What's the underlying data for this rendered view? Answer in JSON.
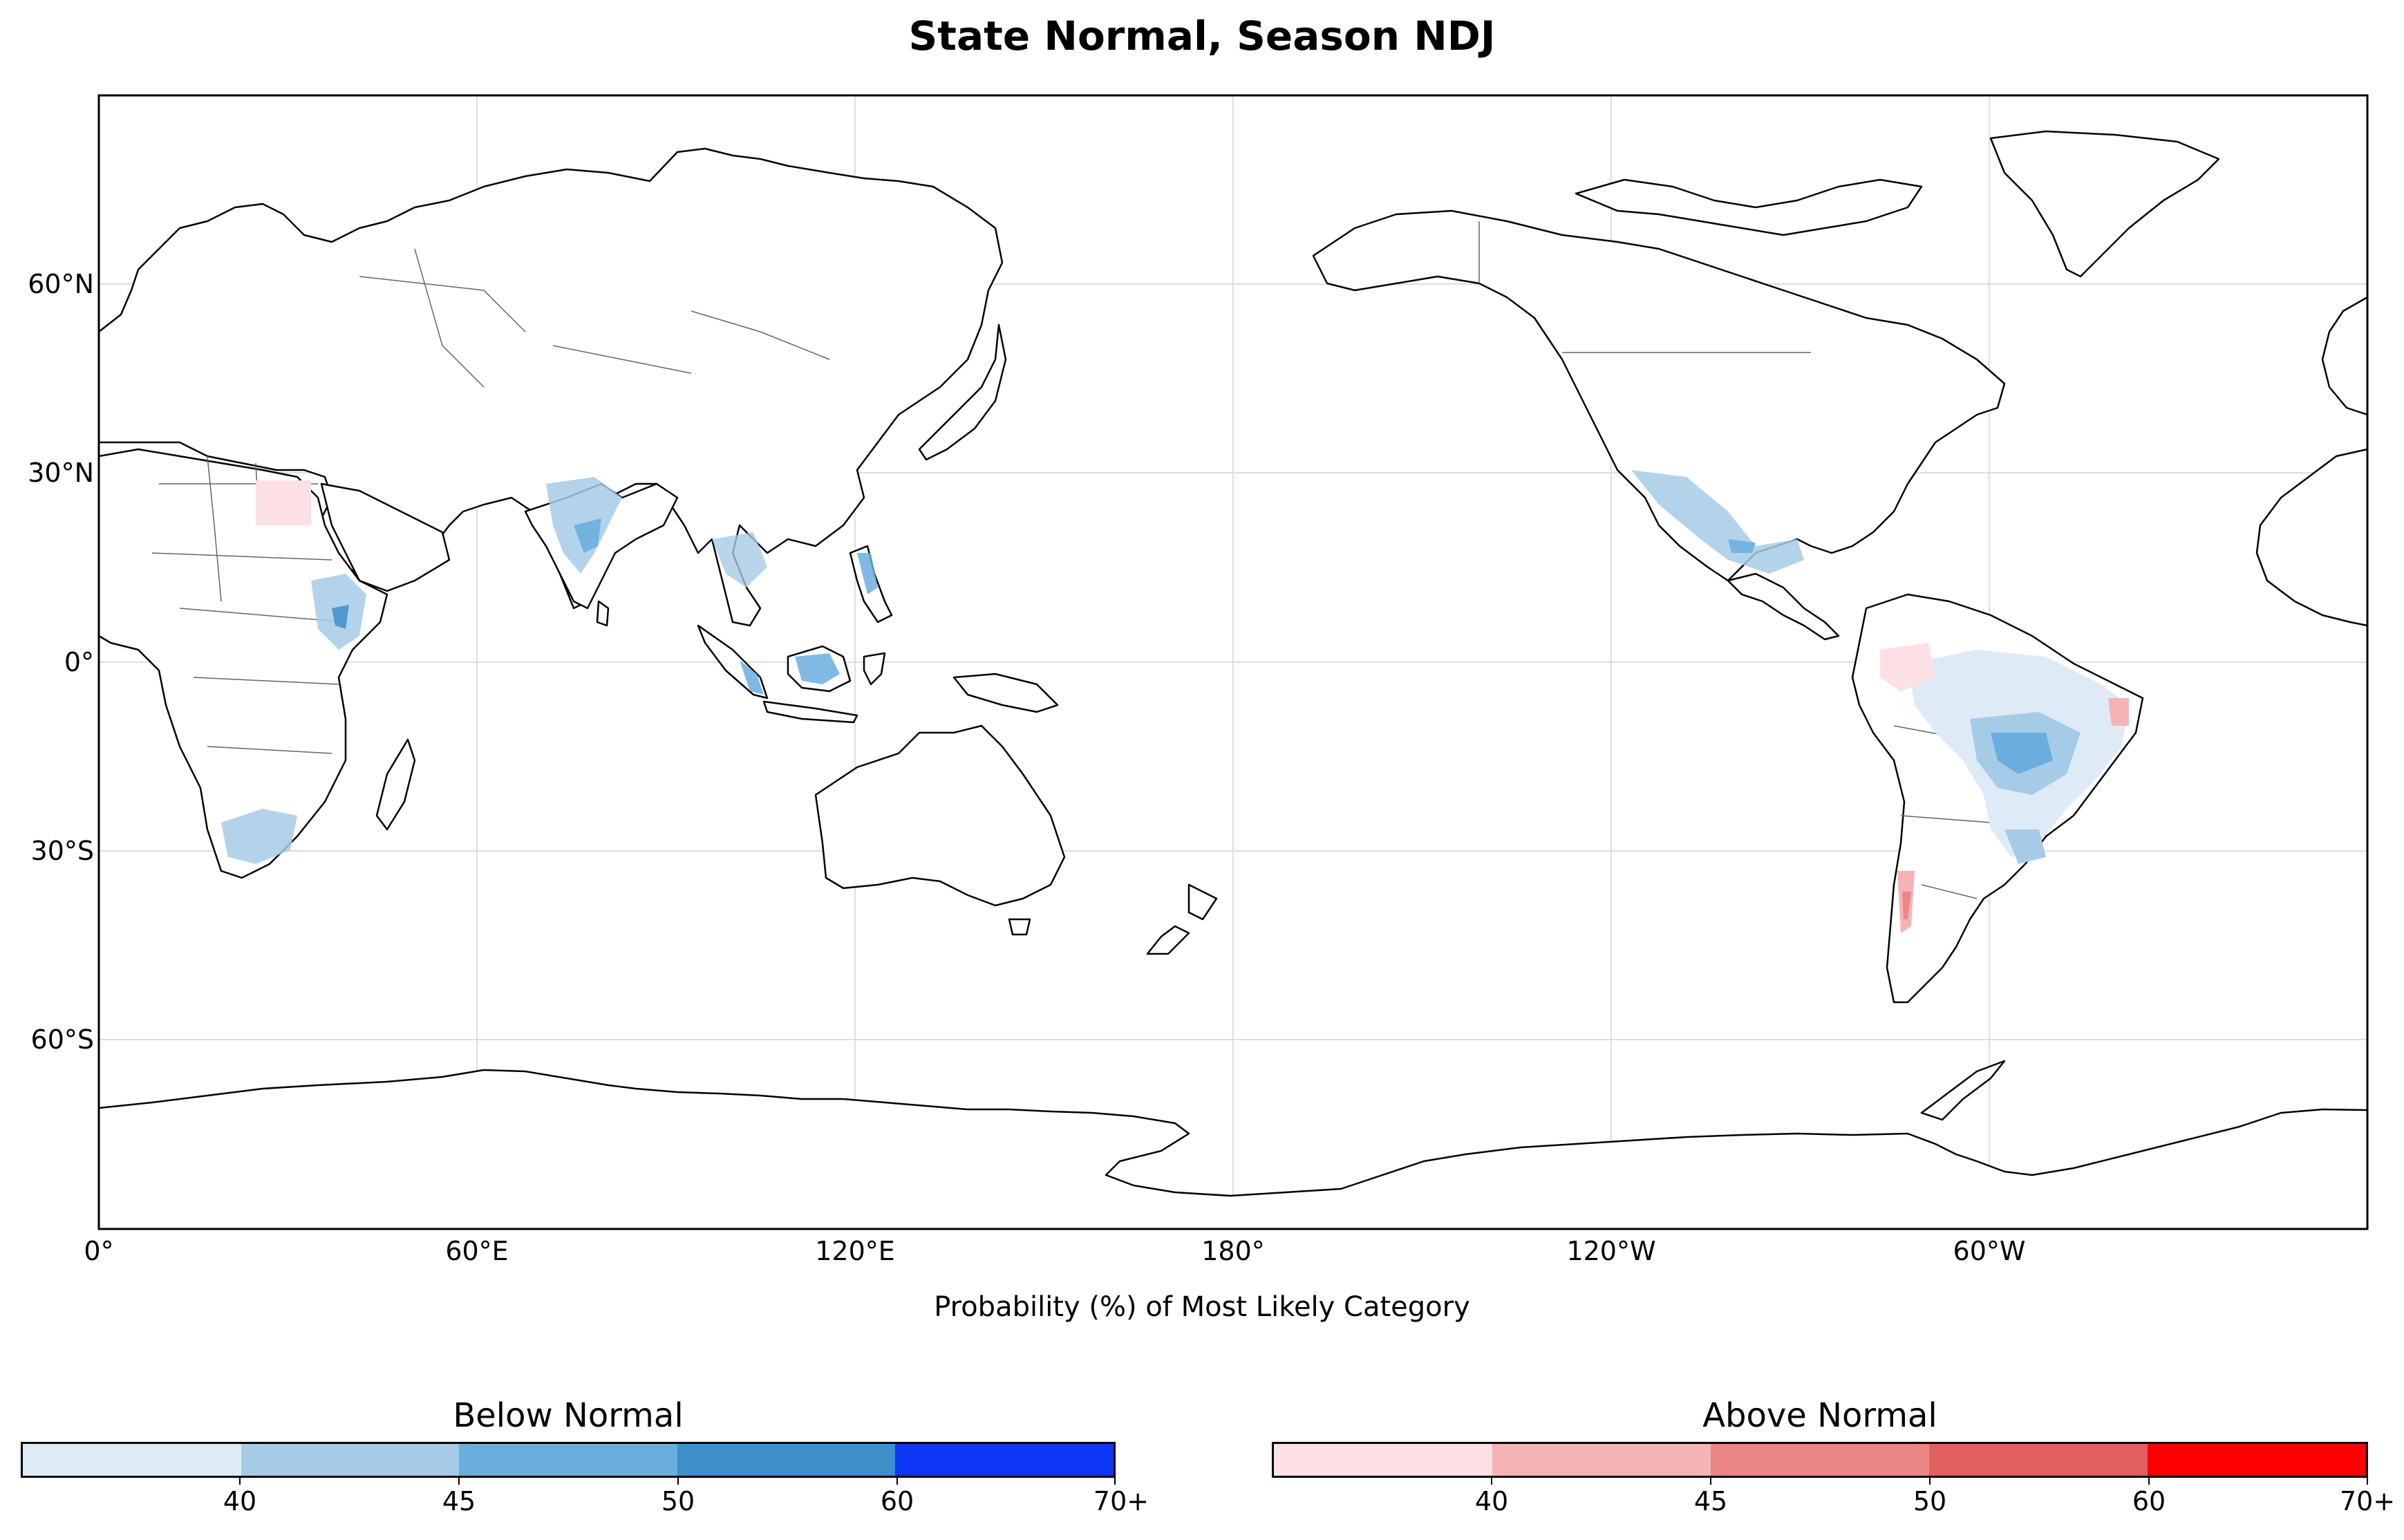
{
  "title": "State Normal, Season NDJ",
  "x_axis": {
    "label": "Probability (%) of Most Likely Category",
    "ticks": [
      "0°",
      "60°E",
      "120°E",
      "180°",
      "120°W",
      "60°W"
    ]
  },
  "y_axis": {
    "ticks": [
      "60°N",
      "30°N",
      "0°",
      "30°S",
      "60°S"
    ]
  },
  "colorbars": [
    {
      "title": "Below Normal",
      "colors": [
        "#deebf7",
        "#a6cbe6",
        "#6aaedf",
        "#3f8fcb",
        "#0d37f5"
      ],
      "tick_labels": [
        "40",
        "45",
        "50",
        "60",
        "70+"
      ]
    },
    {
      "title": "Above Normal",
      "colors": [
        "#fde0e3",
        "#f4b4b6",
        "#ea8686",
        "#e06060",
        "#ff0000"
      ],
      "tick_labels": [
        "40",
        "45",
        "50",
        "60",
        "70+"
      ]
    }
  ],
  "map": {
    "central_longitude": 180,
    "ocean_color": "#ffffff",
    "land_color": "#ffffff",
    "coastline_color": "#000000",
    "border_color": "#555555",
    "grid": true
  }
}
